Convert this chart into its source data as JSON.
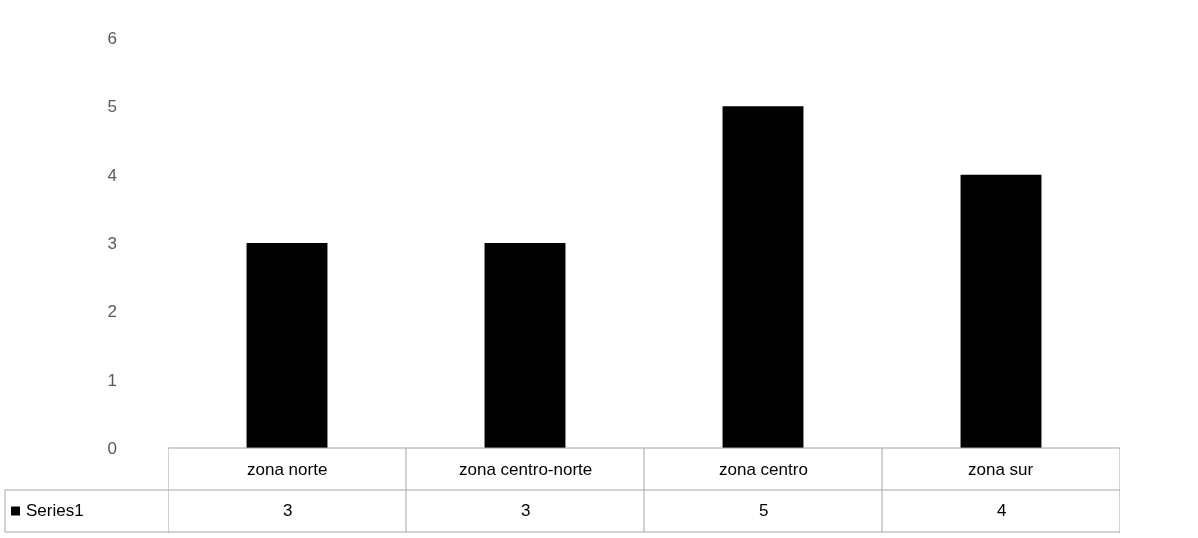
{
  "chart_data": {
    "type": "bar",
    "categories": [
      "zona norte",
      "zona centro-norte",
      "zona centro",
      "zona sur"
    ],
    "series": [
      {
        "name": "Series1",
        "color": "#000000",
        "values": [
          3,
          3,
          5,
          4
        ]
      }
    ],
    "ylim": [
      0,
      6
    ],
    "yticks": [
      0,
      1,
      2,
      3,
      4,
      5,
      6
    ],
    "grid": false,
    "legend": "bottom left",
    "data_labels": true
  }
}
